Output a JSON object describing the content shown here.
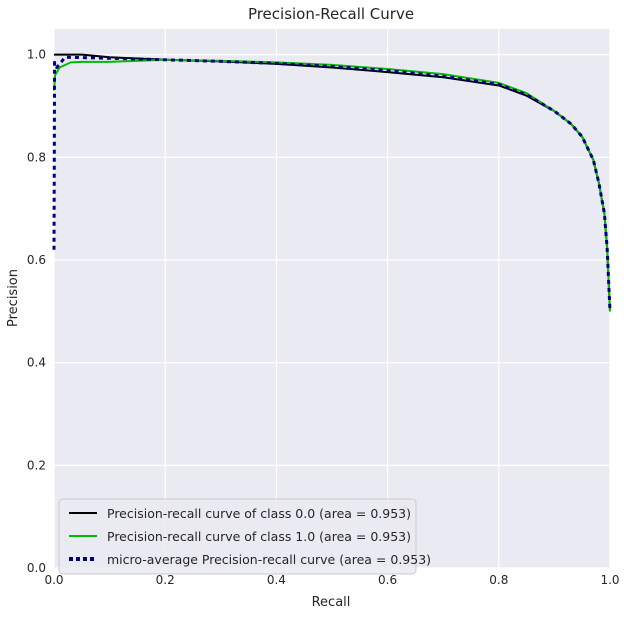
{
  "chart_data": {
    "type": "line",
    "title": "Precision-Recall Curve",
    "xlabel": "Recall",
    "ylabel": "Precision",
    "xlim": [
      0,
      1
    ],
    "ylim": [
      0,
      1.05
    ],
    "xticks": [
      0.0,
      0.2,
      0.4,
      0.6,
      0.8,
      1.0
    ],
    "yticks": [
      0.0,
      0.2,
      0.4,
      0.6,
      0.8,
      1.0
    ],
    "xtick_labels": [
      "0.0",
      "0.2",
      "0.4",
      "0.6",
      "0.8",
      "1.0"
    ],
    "ytick_labels": [
      "0.0",
      "0.2",
      "0.4",
      "0.6",
      "0.8",
      "1.0"
    ],
    "grid": true,
    "background": "#eaeaf2",
    "legend_position": "lower-left",
    "series": [
      {
        "name": "Precision-recall curve of class 0.0 (area = 0.953)",
        "color": "#000000",
        "style": "solid",
        "points": [
          [
            0,
            1.0
          ],
          [
            0.05,
            1.0
          ],
          [
            0.1,
            0.995
          ],
          [
            0.2,
            0.99
          ],
          [
            0.3,
            0.987
          ],
          [
            0.4,
            0.982
          ],
          [
            0.5,
            0.975
          ],
          [
            0.6,
            0.966
          ],
          [
            0.7,
            0.956
          ],
          [
            0.8,
            0.94
          ],
          [
            0.85,
            0.92
          ],
          [
            0.9,
            0.89
          ],
          [
            0.93,
            0.865
          ],
          [
            0.95,
            0.84
          ],
          [
            0.97,
            0.795
          ],
          [
            0.98,
            0.75
          ],
          [
            0.99,
            0.69
          ],
          [
            0.995,
            0.62
          ],
          [
            1.0,
            0.5
          ]
        ]
      },
      {
        "name": "Precision-recall curve of class 1.0 (area = 0.953)",
        "color": "#00bb00",
        "style": "solid",
        "points": [
          [
            0,
            0.93
          ],
          [
            0.002,
            0.96
          ],
          [
            0.01,
            0.975
          ],
          [
            0.03,
            0.985
          ],
          [
            0.05,
            0.986
          ],
          [
            0.1,
            0.986
          ],
          [
            0.2,
            0.99
          ],
          [
            0.3,
            0.988
          ],
          [
            0.4,
            0.985
          ],
          [
            0.5,
            0.98
          ],
          [
            0.6,
            0.972
          ],
          [
            0.7,
            0.962
          ],
          [
            0.8,
            0.945
          ],
          [
            0.85,
            0.925
          ],
          [
            0.9,
            0.89
          ],
          [
            0.93,
            0.865
          ],
          [
            0.95,
            0.84
          ],
          [
            0.97,
            0.795
          ],
          [
            0.98,
            0.75
          ],
          [
            0.99,
            0.69
          ],
          [
            0.995,
            0.62
          ],
          [
            1.0,
            0.5
          ]
        ]
      },
      {
        "name": "micro-average Precision-recall curve (area = 0.953)",
        "color": "#000080",
        "style": "dotted",
        "points": [
          [
            0,
            0.62
          ],
          [
            0.001,
            0.985
          ],
          [
            0.005,
            0.975
          ],
          [
            0.02,
            0.995
          ],
          [
            0.1,
            0.993
          ],
          [
            0.2,
            0.99
          ],
          [
            0.3,
            0.987
          ],
          [
            0.4,
            0.983
          ],
          [
            0.5,
            0.977
          ],
          [
            0.6,
            0.969
          ],
          [
            0.7,
            0.958
          ],
          [
            0.8,
            0.942
          ],
          [
            0.85,
            0.922
          ],
          [
            0.9,
            0.89
          ],
          [
            0.93,
            0.865
          ],
          [
            0.95,
            0.84
          ],
          [
            0.97,
            0.795
          ],
          [
            0.98,
            0.75
          ],
          [
            0.99,
            0.69
          ],
          [
            0.995,
            0.62
          ],
          [
            1.0,
            0.5
          ]
        ]
      }
    ]
  }
}
